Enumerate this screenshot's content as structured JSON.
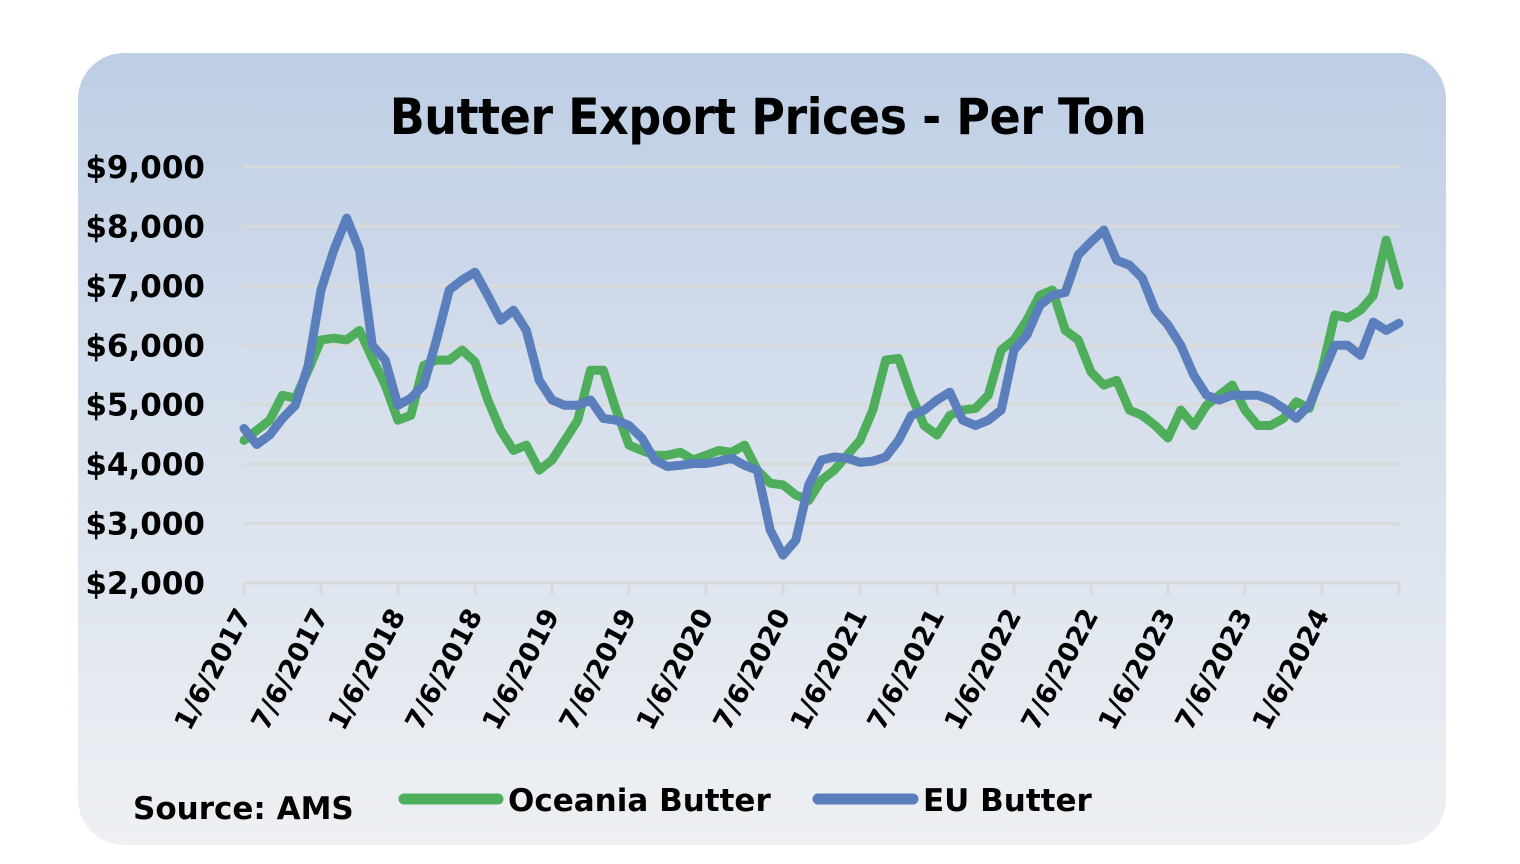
{
  "chart_data": {
    "type": "line",
    "title": "Butter Export Prices - Per Ton",
    "source": "Source: AMS",
    "xlabel": "",
    "ylabel": "",
    "ylim": [
      2000,
      9000
    ],
    "ytick_values": [
      2000,
      3000,
      4000,
      5000,
      6000,
      7000,
      8000,
      9000
    ],
    "ytick_labels": [
      "$2,000",
      "$3,000",
      "$4,000",
      "$5,000",
      "$6,000",
      "$7,000",
      "$8,000",
      "$9,000"
    ],
    "x_axis": {
      "start": "1/6/2017",
      "interval": "monthly",
      "months_span": 90
    },
    "xtick_labels": [
      "1/6/2017",
      "7/6/2017",
      "1/6/2018",
      "7/6/2018",
      "1/6/2019",
      "7/6/2019",
      "1/6/2020",
      "7/6/2020",
      "1/6/2021",
      "7/6/2021",
      "1/6/2022",
      "7/6/2022",
      "1/6/2023",
      "7/6/2023",
      "1/6/2024"
    ],
    "grid": true,
    "legend_position": "bottom",
    "series": [
      {
        "name": "Oceania Butter",
        "color": "#4eae5c",
        "values": [
          4400,
          4570,
          4740,
          5160,
          5110,
          5580,
          6090,
          6120,
          6090,
          6250,
          5780,
          5330,
          4740,
          4820,
          5660,
          5750,
          5750,
          5920,
          5720,
          5080,
          4570,
          4230,
          4320,
          3900,
          4070,
          4400,
          4740,
          5580,
          5580,
          4910,
          4320,
          4230,
          4150,
          4150,
          4200,
          4070,
          4150,
          4230,
          4200,
          4320,
          3900,
          3680,
          3650,
          3480,
          3390,
          3730,
          3900,
          4150,
          4400,
          4910,
          5750,
          5780,
          5160,
          4650,
          4490,
          4820,
          4910,
          4940,
          5160,
          5920,
          6090,
          6420,
          6840,
          6930,
          6250,
          6090,
          5550,
          5330,
          5410,
          4910,
          4820,
          4650,
          4440,
          4910,
          4650,
          4990,
          5160,
          5330,
          4910,
          4650,
          4650,
          4770,
          5050,
          4940,
          5580,
          6510,
          6460,
          6590,
          6840,
          7770,
          7010
        ]
      },
      {
        "name": "EU Butter",
        "color": "#5b7fbd",
        "values": [
          4600,
          4330,
          4490,
          4770,
          4990,
          5660,
          6930,
          7600,
          8140,
          7600,
          6000,
          5750,
          4990,
          5110,
          5330,
          6090,
          6930,
          7100,
          7230,
          6840,
          6420,
          6590,
          6250,
          5410,
          5080,
          4990,
          4990,
          5080,
          4770,
          4740,
          4650,
          4440,
          4070,
          3960,
          3980,
          4010,
          4010,
          4050,
          4100,
          3980,
          3900,
          2890,
          2470,
          2720,
          3650,
          4070,
          4120,
          4100,
          4030,
          4050,
          4120,
          4400,
          4820,
          4910,
          5080,
          5210,
          4740,
          4650,
          4740,
          4910,
          5920,
          6170,
          6670,
          6840,
          6890,
          7520,
          7740,
          7940,
          7430,
          7350,
          7130,
          6590,
          6340,
          6000,
          5500,
          5160,
          5080,
          5160,
          5160,
          5160,
          5080,
          4940,
          4770,
          4990,
          5500,
          6000,
          6000,
          5830,
          6390,
          6250,
          6370
        ]
      }
    ]
  },
  "style": {
    "gridline_color": "#d9d9d9",
    "card_top_color": "#bdcee5",
    "card_bottom_color": "#eef0f3"
  }
}
